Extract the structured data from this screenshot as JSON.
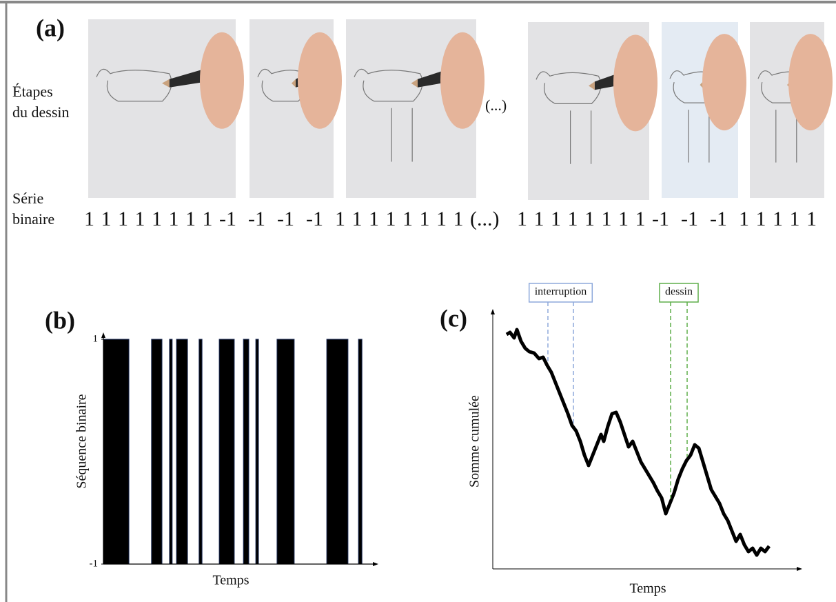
{
  "panel_a": {
    "label": "(a)",
    "steps_label": [
      "Étapes",
      "du dessin"
    ],
    "photo_ellipsis": "(...)",
    "series_label": [
      "Série",
      "binaire"
    ],
    "binary_series": [
      1,
      1,
      1,
      1,
      1,
      1,
      1,
      1,
      -1,
      -1,
      -1,
      -1,
      1,
      1,
      1,
      1,
      1,
      1,
      1,
      1,
      "(...)",
      1,
      1,
      1,
      1,
      1,
      1,
      1,
      1,
      -1,
      -1,
      -1,
      1,
      1,
      1,
      1,
      1
    ]
  },
  "chart_data": [
    {
      "type": "binary",
      "title": "(b)",
      "y_label": "Séquence binaire",
      "x_label": "Temps",
      "color": "#000000",
      "x": [
        0,
        9.5,
        17.9,
        21.8,
        24.6,
        25.6,
        27.2,
        31.3,
        35.6,
        36.7,
        43.1,
        48.7,
        52.1,
        54.1,
        56.7,
        57.7,
        64.6,
        71.0,
        83.1,
        91.0,
        94.9,
        96.2
      ],
      "values": [
        1,
        -1,
        1,
        -1,
        1,
        -1,
        1,
        -1,
        1,
        -1,
        1,
        -1,
        1,
        -1,
        1,
        -1,
        1,
        -1,
        1,
        -1,
        1,
        -1
      ],
      "xlim": [
        0,
        100
      ],
      "ylim": [
        -1,
        1
      ],
      "yticks": [
        -1,
        1
      ]
    },
    {
      "type": "line",
      "title": "(c)",
      "y_label": "Somme cumulée",
      "x_label": "Temps",
      "color": "#000000",
      "x": [
        20,
        25,
        31,
        35,
        41,
        47,
        53,
        60,
        67,
        73,
        79,
        85,
        91,
        97,
        103,
        109,
        115,
        121,
        127,
        133,
        139,
        145,
        151,
        157,
        161,
        167,
        173,
        179,
        185,
        191,
        197,
        203,
        209,
        215,
        221,
        227,
        233,
        239,
        245,
        251,
        257,
        263,
        269,
        275,
        281,
        287,
        293,
        299,
        305,
        311,
        317,
        323,
        329,
        335,
        341,
        347,
        353,
        359,
        365,
        371,
        377,
        383,
        389,
        395,
        401
      ],
      "values": [
        340,
        343,
        335,
        347,
        330,
        320,
        315,
        313,
        305,
        307,
        295,
        285,
        270,
        255,
        240,
        225,
        208,
        200,
        185,
        165,
        150,
        165,
        180,
        195,
        185,
        207,
        225,
        227,
        213,
        195,
        177,
        185,
        170,
        155,
        145,
        135,
        125,
        113,
        103,
        80,
        95,
        110,
        130,
        145,
        157,
        165,
        180,
        175,
        155,
        135,
        115,
        105,
        95,
        80,
        70,
        55,
        40,
        50,
        35,
        25,
        30,
        20,
        30,
        25,
        33
      ],
      "xlim": [
        0,
        445
      ],
      "ylim": [
        0,
        370
      ],
      "annotations": [
        {
          "text": "interruption",
          "color": "#8ea9db",
          "x": [
            80,
            117
          ]
        },
        {
          "text": "dessin",
          "color": "#5fae4a",
          "x": [
            258,
            282
          ]
        }
      ]
    }
  ]
}
